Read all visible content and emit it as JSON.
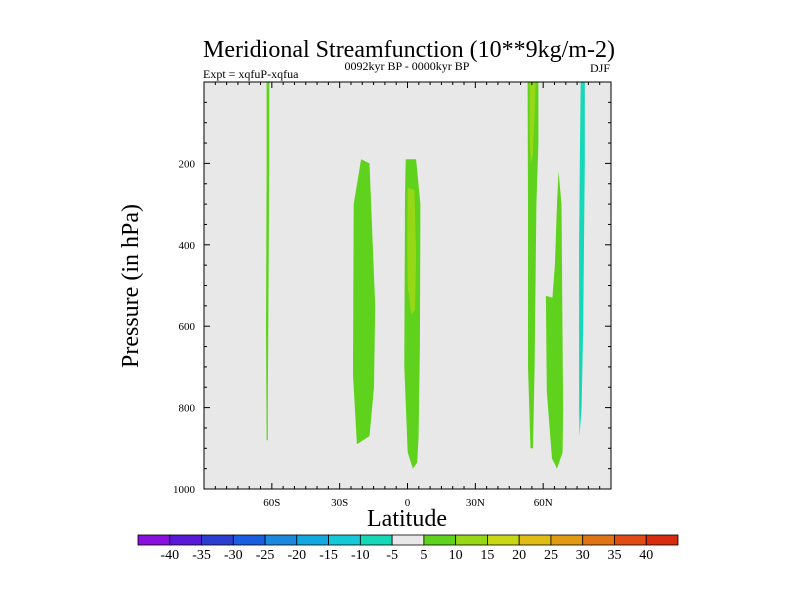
{
  "chart_data": {
    "type": "contour",
    "title": "Meridional Streamfunction (10**9kg/m-2)",
    "subtitle_left": "Expt = xqfuP-xqfua",
    "subtitle_center": "0092kyr BP - 0000kyr BP",
    "subtitle_right": "DJF",
    "xlabel": "Latitude",
    "ylabel": "Pressure (in hPa)",
    "xlim": [
      -90,
      90
    ],
    "ylim": [
      1000,
      0
    ],
    "x_ticks": [
      {
        "value": -60,
        "label": "60S"
      },
      {
        "value": -30,
        "label": "30S"
      },
      {
        "value": 0,
        "label": "0"
      },
      {
        "value": 30,
        "label": "30N"
      },
      {
        "value": 60,
        "label": "60N"
      }
    ],
    "y_ticks": [
      {
        "value": 200,
        "label": "200"
      },
      {
        "value": 400,
        "label": "400"
      },
      {
        "value": 600,
        "label": "600"
      },
      {
        "value": 800,
        "label": "800"
      },
      {
        "value": 1000,
        "label": "1000"
      }
    ],
    "background_color": "#e8e8e8",
    "colorbar": {
      "labels": [
        "-40",
        "-35",
        "-30",
        "-25",
        "-20",
        "-15",
        "-10",
        "-5",
        "5",
        "10",
        "15",
        "20",
        "25",
        "30",
        "35",
        "40"
      ],
      "colors": [
        "#8a10e0",
        "#5a18d8",
        "#2c3ed0",
        "#1a5ee0",
        "#1b88e0",
        "#14a8e0",
        "#14c8d8",
        "#14d8b8",
        "#e8e8e8",
        "#5ed21c",
        "#96d816",
        "#c8d814",
        "#e0bc14",
        "#e09a14",
        "#e07414",
        "#e04c14",
        "#d82c10"
      ]
    },
    "regions": [
      {
        "level": 5,
        "color": "#5ed21c",
        "points": [
          [
            -62.3,
            0
          ],
          [
            -61.1,
            0
          ],
          [
            -61.1,
            200
          ],
          [
            -61.8,
            800
          ],
          [
            -61.8,
            880
          ],
          [
            -62.3,
            880
          ],
          [
            -62.6,
            600
          ],
          [
            -62.3,
            200
          ]
        ]
      },
      {
        "level": 5,
        "color": "#5ed21c",
        "points": [
          [
            -20.5,
            190
          ],
          [
            -16.8,
            200
          ],
          [
            -14.3,
            550
          ],
          [
            -14.8,
            750
          ],
          [
            -16.8,
            870
          ],
          [
            -22.4,
            890
          ],
          [
            -24.1,
            720
          ],
          [
            -23.8,
            300
          ]
        ]
      },
      {
        "level": 5,
        "color": "#5ed21c",
        "points": [
          [
            -0.8,
            190
          ],
          [
            3.8,
            190
          ],
          [
            5.7,
            300
          ],
          [
            5.5,
            650
          ],
          [
            4.9,
            870
          ],
          [
            4.3,
            935
          ],
          [
            2.4,
            950
          ],
          [
            0.1,
            910
          ],
          [
            -1.4,
            700
          ],
          [
            -1.1,
            280
          ]
        ]
      },
      {
        "level": 10,
        "color": "#96d816",
        "points": [
          [
            0.1,
            260
          ],
          [
            3.1,
            265
          ],
          [
            3.8,
            430
          ],
          [
            3.3,
            560
          ],
          [
            1.6,
            570
          ],
          [
            0.1,
            500
          ],
          [
            -0.1,
            350
          ]
        ]
      },
      {
        "level": 5,
        "color": "#5ed21c",
        "points": [
          [
            53.1,
            0
          ],
          [
            57.9,
            0
          ],
          [
            57.9,
            150
          ],
          [
            57.0,
            300
          ],
          [
            56.2,
            700
          ],
          [
            55.5,
            900
          ],
          [
            54.4,
            900
          ],
          [
            53.3,
            700
          ],
          [
            53.3,
            300
          ]
        ]
      },
      {
        "level": 10,
        "color": "#96d816",
        "points": [
          [
            54.0,
            0
          ],
          [
            56.6,
            0
          ],
          [
            56.2,
            80
          ],
          [
            55.4,
            180
          ],
          [
            54.4,
            200
          ],
          [
            54.0,
            120
          ]
        ]
      },
      {
        "level": 5,
        "color": "#5ed21c",
        "points": [
          [
            66.8,
            220
          ],
          [
            68.1,
            300
          ],
          [
            68.8,
            800
          ],
          [
            68.6,
            910
          ],
          [
            66.1,
            950
          ],
          [
            63.9,
            925
          ],
          [
            61.6,
            760
          ],
          [
            61.2,
            525
          ],
          [
            64.1,
            530
          ],
          [
            65.2,
            450
          ],
          [
            66.1,
            300
          ]
        ]
      },
      {
        "level": -5,
        "color": "#14d8b8",
        "points": [
          [
            76.6,
            0
          ],
          [
            78.4,
            0
          ],
          [
            78.4,
            200
          ],
          [
            77.7,
            600
          ],
          [
            77.0,
            800
          ],
          [
            76.1,
            870
          ],
          [
            75.9,
            800
          ],
          [
            75.9,
            400
          ],
          [
            76.2,
            200
          ]
        ]
      }
    ]
  }
}
